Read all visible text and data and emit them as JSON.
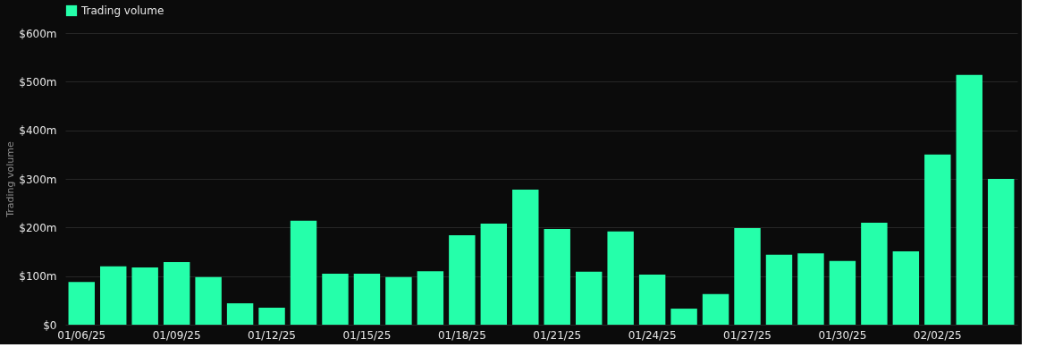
{
  "chart_data": {
    "type": "bar",
    "ylabel": "Trading volume",
    "legend": "top",
    "categories": [
      "01/06/25",
      null,
      null,
      "01/09/25",
      null,
      null,
      "01/12/25",
      null,
      null,
      "01/15/25",
      null,
      null,
      "01/18/25",
      null,
      null,
      "01/21/25",
      null,
      null,
      "01/24/25",
      null,
      null,
      "01/27/25",
      null,
      null,
      "01/30/25",
      null,
      null,
      "02/02/25",
      null,
      null
    ],
    "series": [
      {
        "name": "Trading volume",
        "color": "#25ffaa",
        "values": [
          88,
          120,
          118,
          129,
          98,
          44,
          35,
          214,
          105,
          105,
          98,
          110,
          184,
          208,
          278,
          197,
          109,
          192,
          103,
          33,
          63,
          199,
          144,
          147,
          131,
          210,
          151,
          350,
          514,
          300
        ]
      }
    ],
    "ylim": [
      0,
      600
    ],
    "yticks": [
      {
        "value": 0,
        "label": "$0"
      },
      {
        "value": 100,
        "label": "$100m"
      },
      {
        "value": 200,
        "label": "$200m"
      },
      {
        "value": 300,
        "label": "$300m"
      },
      {
        "value": 400,
        "label": "$400m"
      },
      {
        "value": 500,
        "label": "$500m"
      },
      {
        "value": 600,
        "label": "$600m"
      }
    ],
    "grid": "y"
  }
}
